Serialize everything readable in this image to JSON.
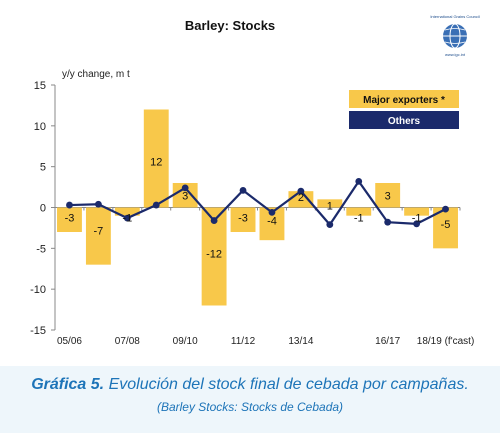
{
  "chart_data": {
    "type": "bar",
    "title": "Barley: Stocks",
    "ylabel": "y/y change, m t",
    "ylim": [
      -15,
      15
    ],
    "yticks": [
      -15,
      -10,
      -5,
      0,
      5,
      10,
      15
    ],
    "x_tick_labels": [
      "05/06",
      "07/08",
      "09/10",
      "11/12",
      "13/14",
      "16/17",
      "18/19 (f'cast)"
    ],
    "x_tick_positions": [
      0,
      2,
      4,
      6,
      8,
      11,
      13
    ],
    "periods": 14,
    "series": [
      {
        "name": "Major exporters *",
        "type": "bar",
        "color": "#f8c84a",
        "values": [
          -3,
          -7,
          -1,
          12,
          3,
          -12,
          -3,
          -4,
          2,
          1,
          -1,
          3,
          -1,
          -5
        ],
        "labels": [
          "-3",
          "-7",
          "-1",
          "12",
          "3",
          "-12",
          "-3",
          "-4",
          "2",
          "1",
          "-1",
          "3",
          "-1",
          "-5"
        ]
      },
      {
        "name": "Others",
        "type": "line",
        "color": "#1b2a6b",
        "values": [
          0.3,
          0.4,
          -1.3,
          0.3,
          2.4,
          -1.6,
          2.1,
          -0.6,
          2.0,
          -2.1,
          3.2,
          -1.8,
          -2.0,
          -0.2
        ]
      }
    ],
    "legend": "top-right",
    "grid": false
  },
  "logo": {
    "text": "International Grains Council",
    "url": "www.igc.int",
    "icon": "globe-icon"
  },
  "caption": {
    "label": "Gráfica 5.",
    "text": "Evolución del stock final de cebada por campañas.",
    "sub": "(Barley Stocks: Stocks de Cebada)"
  }
}
